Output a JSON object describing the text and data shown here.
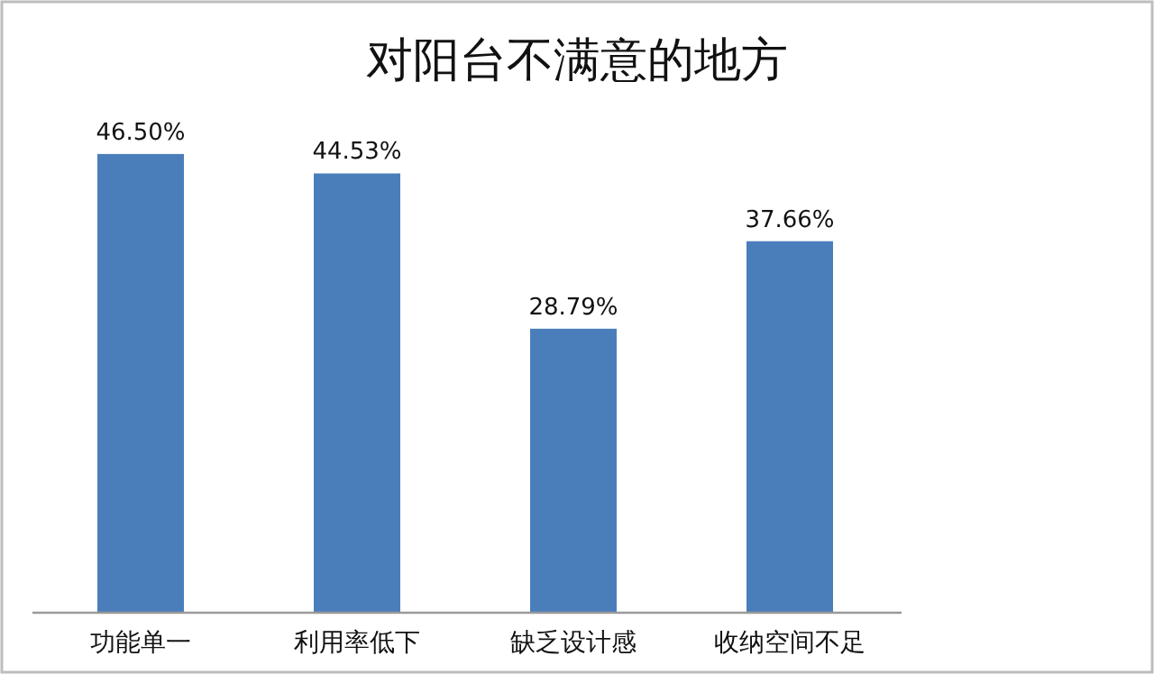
{
  "chart_data": {
    "type": "bar",
    "title": "对阳台不满意的地方",
    "categories": [
      "功能单一",
      "利用率低下",
      "缺乏设计感",
      "收纳空间不足"
    ],
    "values": [
      46.5,
      44.53,
      28.79,
      37.66
    ],
    "value_labels": [
      "46.50%",
      "44.53%",
      "28.79%",
      "37.66%"
    ],
    "color": "#4a7ebb"
  }
}
